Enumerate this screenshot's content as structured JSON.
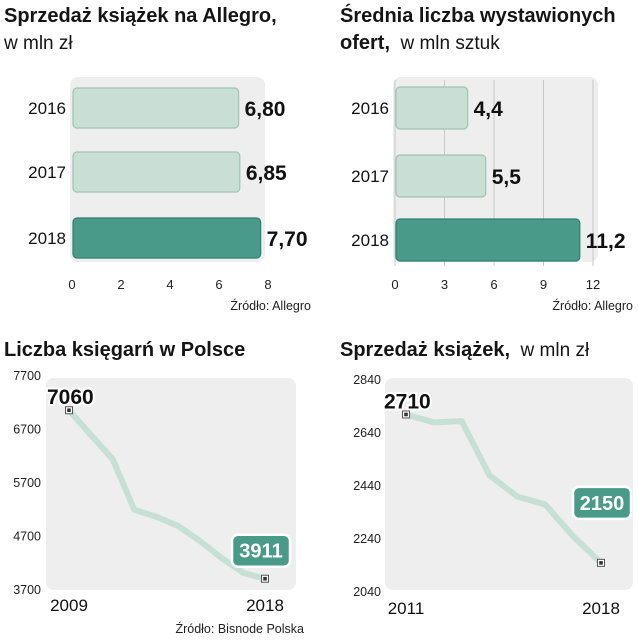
{
  "colors": {
    "panel_bg": "#eeeeee",
    "bar_light": "#c9dfd5",
    "bar_light_stroke": "#9fc4b4",
    "bar_dark": "#4a9a8a",
    "bar_dark_stroke": "#2f7f70",
    "line": "#c7e0d5",
    "label_box": "#4a9a8a"
  },
  "chart_data": [
    {
      "type": "bar",
      "orientation": "horizontal",
      "title": "Sprzedaż książek na Allegro,",
      "subtitle": "w mln zł",
      "categories": [
        "2016",
        "2017",
        "2018"
      ],
      "values": [
        6.8,
        6.85,
        7.7
      ],
      "value_labels": [
        "6,80",
        "6,85",
        "7,70"
      ],
      "highlight_index": 2,
      "xlim": [
        0,
        8
      ],
      "ticks": [
        0,
        2,
        4,
        6,
        8
      ],
      "tick_labels": [
        "0",
        "2",
        "4",
        "6",
        "8"
      ],
      "source": "Źródło: Allegro"
    },
    {
      "type": "bar",
      "orientation": "horizontal",
      "title": "Średnia liczba wystawionych",
      "title_line2": "ofert,",
      "subtitle": "w mln sztuk",
      "categories": [
        "2016",
        "2017",
        "2018"
      ],
      "values": [
        4.4,
        5.5,
        11.2
      ],
      "value_labels": [
        "4,4",
        "5,5",
        "11,2"
      ],
      "highlight_index": 2,
      "xlim": [
        0,
        12
      ],
      "ticks": [
        0,
        3,
        6,
        9,
        12
      ],
      "tick_labels": [
        "0",
        "3",
        "6",
        "9",
        "12"
      ],
      "source": "Źródło: Allegro"
    },
    {
      "type": "line",
      "title": "Liczba księgarń w Polsce",
      "x": [
        2009,
        2010,
        2011,
        2012,
        2013,
        2014,
        2015,
        2016,
        2017,
        2018
      ],
      "y": [
        7060,
        6600,
        6150,
        5200,
        5070,
        4900,
        4620,
        4300,
        4020,
        3911
      ],
      "x_labels": [
        "2009",
        "2018"
      ],
      "ylim": [
        3700,
        7700
      ],
      "yticks": [
        3700,
        4700,
        5700,
        6700,
        7700
      ],
      "ytick_labels": [
        "3700",
        "4700",
        "5700",
        "6700",
        "7700"
      ],
      "start_label": "7060",
      "end_label": "3911",
      "source": "Źródło: Bisnode Polska"
    },
    {
      "type": "line",
      "title": "Sprzedaż książek,",
      "subtitle": "w mln zł",
      "x": [
        2011,
        2012,
        2013,
        2014,
        2015,
        2016,
        2017,
        2018
      ],
      "y": [
        2710,
        2680,
        2685,
        2480,
        2400,
        2370,
        2250,
        2150
      ],
      "x_labels": [
        "2011",
        "2018"
      ],
      "ylim": [
        2040,
        2840
      ],
      "yticks": [
        2040,
        2240,
        2440,
        2640,
        2840
      ],
      "ytick_labels": [
        "2040",
        "2240",
        "2440",
        "2640",
        "2840"
      ],
      "start_label": "2710",
      "end_label": "2150"
    }
  ]
}
